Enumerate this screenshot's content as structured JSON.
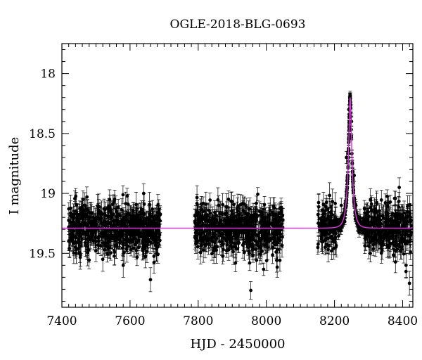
{
  "chart_data": {
    "type": "scatter",
    "title": "OGLE-2018-BLG-0693",
    "xlabel": "HJD - 2450000",
    "ylabel": "I magnitude",
    "xlim": [
      7400,
      8430
    ],
    "ylim": [
      19.95,
      17.75
    ],
    "y_inverted": true,
    "grid": false,
    "xticks": [
      7400,
      7600,
      7800,
      8000,
      8200,
      8400
    ],
    "xtick_labels": [
      "7400",
      "7600",
      "7800",
      "8000",
      "8200",
      "8400"
    ],
    "yticks": [
      18,
      18.5,
      19,
      19.5
    ],
    "ytick_labels": [
      "18",
      "18.5",
      "19",
      "19.5"
    ],
    "seasons": [
      {
        "start": 7420,
        "end": 7690
      },
      {
        "start": 7790,
        "end": 8050
      },
      {
        "start": 8150,
        "end": 8425
      }
    ],
    "series": [
      {
        "kind": "scatter",
        "marker_color": "#000000",
        "baseline_mag": 19.29,
        "points": [
          {
            "x": 7425,
            "y": 19.24,
            "err": 0.08
          },
          {
            "x": 7440,
            "y": 19.45,
            "err": 0.09
          },
          {
            "x": 7460,
            "y": 19.12,
            "err": 0.08
          },
          {
            "x": 7480,
            "y": 19.38,
            "err": 0.09
          },
          {
            "x": 7500,
            "y": 19.22,
            "err": 0.08
          },
          {
            "x": 7520,
            "y": 19.55,
            "err": 0.1
          },
          {
            "x": 7540,
            "y": 19.05,
            "err": 0.08
          },
          {
            "x": 7560,
            "y": 19.33,
            "err": 0.09
          },
          {
            "x": 7580,
            "y": 19.6,
            "err": 0.1
          },
          {
            "x": 7600,
            "y": 19.18,
            "err": 0.08
          },
          {
            "x": 7620,
            "y": 19.41,
            "err": 0.09
          },
          {
            "x": 7640,
            "y": 19.0,
            "err": 0.08
          },
          {
            "x": 7660,
            "y": 19.72,
            "err": 0.1
          },
          {
            "x": 7680,
            "y": 19.3,
            "err": 0.09
          },
          {
            "x": 7800,
            "y": 19.25,
            "err": 0.08
          },
          {
            "x": 7830,
            "y": 19.42,
            "err": 0.09
          },
          {
            "x": 7860,
            "y": 19.1,
            "err": 0.08
          },
          {
            "x": 7890,
            "y": 19.36,
            "err": 0.09
          },
          {
            "x": 7920,
            "y": 19.2,
            "err": 0.08
          },
          {
            "x": 7950,
            "y": 19.5,
            "err": 0.09
          },
          {
            "x": 7980,
            "y": 19.15,
            "err": 0.08
          },
          {
            "x": 8010,
            "y": 19.38,
            "err": 0.09
          },
          {
            "x": 8040,
            "y": 19.28,
            "err": 0.08
          },
          {
            "x": 8160,
            "y": 19.3,
            "err": 0.09
          },
          {
            "x": 8190,
            "y": 19.25,
            "err": 0.08
          },
          {
            "x": 8220,
            "y": 19.1,
            "err": 0.06
          },
          {
            "x": 8235,
            "y": 18.7,
            "err": 0.05
          },
          {
            "x": 8242,
            "y": 18.3,
            "err": 0.04
          },
          {
            "x": 8246,
            "y": 18.2,
            "err": 0.04
          },
          {
            "x": 8250,
            "y": 18.4,
            "err": 0.04
          },
          {
            "x": 8258,
            "y": 18.85,
            "err": 0.05
          },
          {
            "x": 8275,
            "y": 19.2,
            "err": 0.07
          },
          {
            "x": 8300,
            "y": 19.35,
            "err": 0.09
          },
          {
            "x": 8330,
            "y": 19.22,
            "err": 0.08
          },
          {
            "x": 8360,
            "y": 19.45,
            "err": 0.09
          },
          {
            "x": 8390,
            "y": 18.95,
            "err": 0.08
          },
          {
            "x": 8410,
            "y": 19.6,
            "err": 0.1
          },
          {
            "x": 8420,
            "y": 19.75,
            "err": 0.1
          }
        ]
      },
      {
        "kind": "line",
        "color": "#e030e0",
        "baseline_mag": 19.29,
        "peak_mag": 18.2,
        "t0": 8246,
        "tE": 12,
        "x": [
          7400,
          8100,
          8200,
          8225,
          8235,
          8240,
          8244,
          8246,
          8248,
          8252,
          8257,
          8267,
          8290,
          8430
        ],
        "y": [
          19.29,
          19.28,
          19.24,
          19.06,
          18.82,
          18.58,
          18.32,
          18.2,
          18.32,
          18.58,
          18.82,
          19.06,
          19.24,
          19.29
        ]
      }
    ]
  }
}
